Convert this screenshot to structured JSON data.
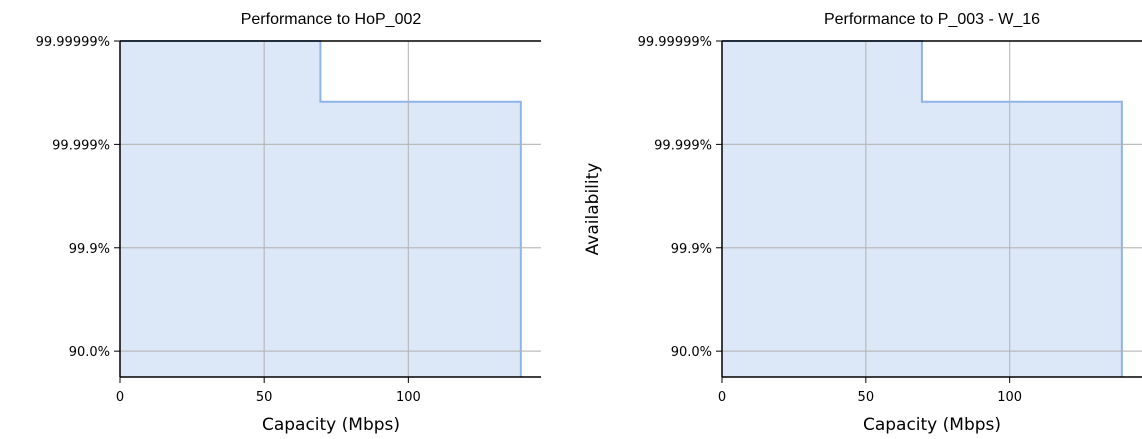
{
  "colors": {
    "fill": "#dce7f7",
    "line": "#8fb4ea",
    "grid": "#b3b3b3",
    "axis": "#000000"
  },
  "chart_data": [
    {
      "type": "area",
      "step": true,
      "title": "Performance to HoP_002",
      "xlabel": "Capacity (Mbps)",
      "ylabel": "",
      "xlim": [
        0,
        146
      ],
      "xticks": [
        0,
        50,
        100
      ],
      "xtick_labels": [
        "0",
        "50",
        "100"
      ],
      "ytick_labels": [
        "99.99999%",
        "99.999%",
        "99.9%",
        "90.0%"
      ],
      "y_scale": "nines",
      "ylim_nines": [
        0.5,
        7
      ],
      "grid": true,
      "series": [
        {
          "name": "",
          "points": [
            {
              "capacity": 0,
              "availability": "99.99999%"
            },
            {
              "capacity": 69.5,
              "availability": "99.99999%"
            },
            {
              "capacity": 69.5,
              "availability": "99.99985%"
            },
            {
              "capacity": 139,
              "availability": "99.99985%"
            },
            {
              "capacity": 139,
              "availability": "68%"
            }
          ]
        }
      ]
    },
    {
      "type": "area",
      "step": true,
      "title": "Performance to P_003 - W_16",
      "xlabel": "Capacity (Mbps)",
      "ylabel": "Availability",
      "xlim": [
        0,
        146
      ],
      "xticks": [
        0,
        50,
        100
      ],
      "xtick_labels": [
        "0",
        "50",
        "100"
      ],
      "ytick_labels": [
        "99.99999%",
        "99.999%",
        "99.9%",
        "90.0%"
      ],
      "y_scale": "nines",
      "ylim_nines": [
        0.5,
        7
      ],
      "grid": true,
      "series": [
        {
          "name": "",
          "points": [
            {
              "capacity": 0,
              "availability": "99.99999%"
            },
            {
              "capacity": 69.5,
              "availability": "99.99999%"
            },
            {
              "capacity": 69.5,
              "availability": "99.99985%"
            },
            {
              "capacity": 139,
              "availability": "99.99985%"
            },
            {
              "capacity": 139,
              "availability": "68%"
            }
          ]
        }
      ]
    }
  ]
}
